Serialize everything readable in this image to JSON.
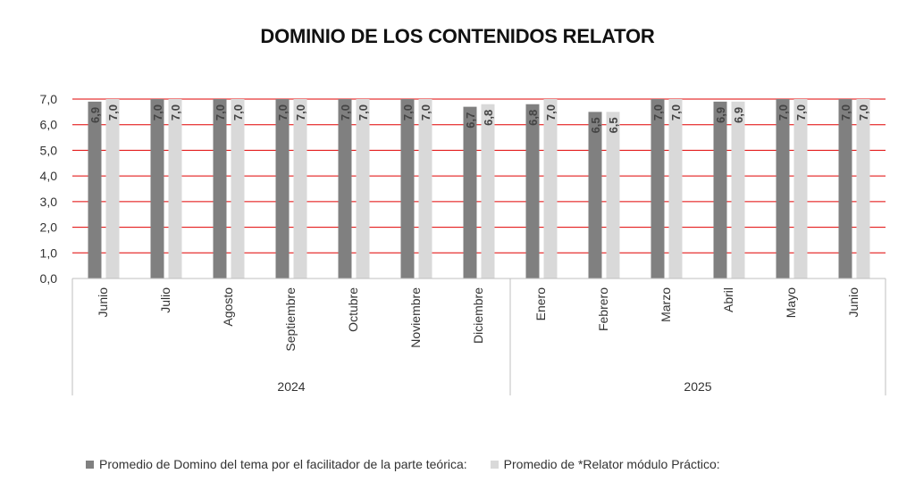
{
  "chart_data": {
    "type": "bar",
    "title": "DOMINIO DE LOS CONTENIDOS RELATOR",
    "categories": [
      "Junio",
      "Julio",
      "Agosto",
      "Septiembre",
      "Octubre",
      "Noviembre",
      "Diciembre",
      "Enero",
      "Febrero",
      "Marzo",
      "Abril",
      "Mayo",
      "Junio"
    ],
    "groups": [
      {
        "label": "2024",
        "count": 7
      },
      {
        "label": "2025",
        "count": 6
      }
    ],
    "series": [
      {
        "name": "Promedio de Domino del tema por el facilitador de la parte teórica:",
        "color": "#808080",
        "values": [
          6.9,
          7.0,
          7.0,
          7.0,
          7.0,
          7.0,
          6.7,
          6.8,
          6.5,
          7.0,
          6.9,
          7.0,
          7.0
        ],
        "labels": [
          "6,9",
          "7,0",
          "7,0",
          "7,0",
          "7,0",
          "7,0",
          "6,7",
          "6,8",
          "6,5",
          "7,0",
          "6,9",
          "7,0",
          "7,0"
        ]
      },
      {
        "name": "Promedio de *Relator módulo Práctico:",
        "color": "#d9d9d9",
        "values": [
          7.0,
          7.0,
          7.0,
          7.0,
          7.0,
          7.0,
          6.8,
          7.0,
          6.5,
          7.0,
          6.9,
          7.0,
          7.0
        ],
        "labels": [
          "7,0",
          "7,0",
          "7,0",
          "7,0",
          "7,0",
          "7,0",
          "6,8",
          "7,0",
          "6,5",
          "7,0",
          "6,9",
          "7,0",
          "7,0"
        ]
      }
    ],
    "ylim": [
      0,
      7
    ],
    "yticks": [
      "0,0",
      "1,0",
      "2,0",
      "3,0",
      "4,0",
      "5,0",
      "6,0",
      "7,0"
    ],
    "grid": true,
    "grid_color": "#e00000",
    "legend_position": "bottom"
  }
}
